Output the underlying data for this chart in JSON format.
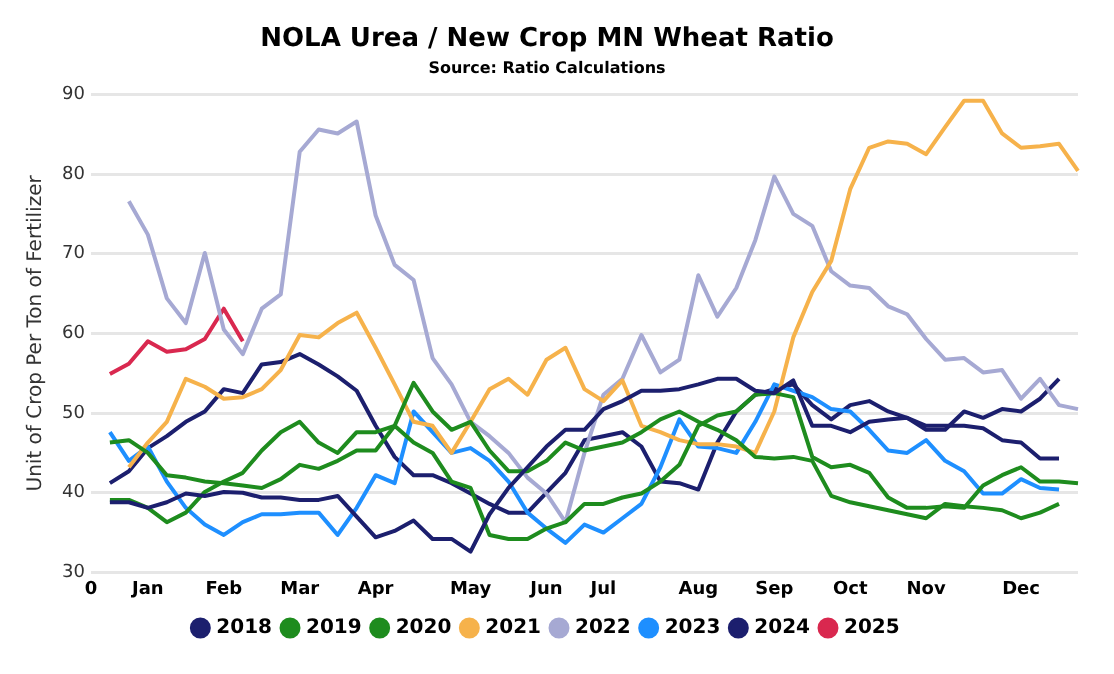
{
  "chart_data": {
    "type": "line",
    "title": "NOLA Urea / New Crop MN Wheat Ratio",
    "subtitle": "Source: Ratio Calculations",
    "ylabel": "Unit of Crop Per Ton of Fertilizer",
    "categories": [
      "0",
      null,
      null,
      "Jan",
      null,
      null,
      null,
      "Feb",
      null,
      null,
      null,
      "Mar",
      null,
      null,
      null,
      "Apr",
      null,
      null,
      null,
      null,
      "May",
      null,
      null,
      null,
      "Jun",
      null,
      null,
      "Jul",
      null,
      null,
      null,
      null,
      "Aug",
      null,
      null,
      null,
      "Sep",
      null,
      null,
      null,
      "Oct",
      null,
      null,
      null,
      "Nov",
      null,
      null,
      null,
      null,
      "Dec",
      null,
      null,
      null
    ],
    "ylim": [
      30,
      90
    ],
    "yticks": [
      30,
      40,
      50,
      60,
      70,
      80,
      90
    ],
    "grid": "y",
    "legend": "bottom",
    "marker": "none",
    "line_style": "solid",
    "series": [
      {
        "name": "2018",
        "color": "#1c1f6e",
        "values": [
          null,
          38.8,
          38.8,
          38.1,
          38.8,
          39.9,
          39.6,
          40.1,
          40.0,
          39.4,
          39.4,
          39.1,
          39.1,
          39.6,
          37.0,
          34.4,
          35.2,
          36.5,
          34.2,
          34.2,
          32.6,
          37.3,
          40.6,
          43.2,
          45.8,
          47.9,
          47.9,
          50.5,
          51.5,
          52.8,
          52.8,
          53.0,
          53.6,
          54.3,
          54.3,
          52.8,
          52.5,
          54.1,
          48.4,
          48.4,
          47.6,
          48.9,
          49.2,
          49.4,
          48.4,
          48.4,
          48.4,
          48.1,
          46.6,
          46.3,
          44.3,
          44.3,
          null
        ]
      },
      {
        "name": "2019",
        "color": "#1e8c1e",
        "values": [
          null,
          39.1,
          39.1,
          38.1,
          36.3,
          37.5,
          40.1,
          41.4,
          42.5,
          45.3,
          47.6,
          48.9,
          46.3,
          45.0,
          47.6,
          47.6,
          48.4,
          46.3,
          45.0,
          41.4,
          40.6,
          34.7,
          34.2,
          34.2,
          35.5,
          36.3,
          38.6,
          38.6,
          39.4,
          39.9,
          41.4,
          43.5,
          48.4,
          49.7,
          50.2,
          52.3,
          52.5,
          52.0,
          44.5,
          43.2,
          43.5,
          42.5,
          39.4,
          38.1,
          38.1,
          38.3,
          38.1,
          40.9,
          42.2,
          43.2,
          41.4,
          41.4,
          41.2
        ]
      },
      {
        "name": "2020",
        "color": "#1e8c1e",
        "values": [
          null,
          46.3,
          46.6,
          45.0,
          42.2,
          41.9,
          41.4,
          41.2,
          40.9,
          40.6,
          41.7,
          43.5,
          43.0,
          44.0,
          45.3,
          45.3,
          48.4,
          53.8,
          50.2,
          47.9,
          48.9,
          45.3,
          42.7,
          42.7,
          44.0,
          46.3,
          45.3,
          45.8,
          46.3,
          47.6,
          49.2,
          50.2,
          48.9,
          47.9,
          46.6,
          44.5,
          44.3,
          44.5,
          44.0,
          39.6,
          38.8,
          38.3,
          37.8,
          37.3,
          36.8,
          38.6,
          38.3,
          38.1,
          37.8,
          36.8,
          37.5,
          38.6,
          null
        ]
      },
      {
        "name": "2021",
        "color": "#f6b24b",
        "values": [
          null,
          null,
          43.2,
          46.3,
          48.9,
          54.3,
          53.3,
          51.8,
          52.0,
          53.0,
          55.4,
          59.8,
          59.5,
          61.3,
          62.6,
          58.2,
          53.6,
          48.9,
          48.4,
          45.0,
          48.9,
          53.0,
          54.3,
          52.3,
          56.7,
          58.2,
          53.0,
          51.5,
          54.1,
          48.4,
          47.6,
          46.6,
          46.1,
          46.1,
          45.8,
          45.0,
          50.2,
          59.5,
          65.2,
          69.1,
          78.1,
          83.3,
          84.1,
          83.8,
          82.5,
          85.9,
          89.2,
          89.2,
          85.1,
          83.3,
          83.5,
          83.8,
          80.4
        ]
      },
      {
        "name": "2022",
        "color": "#a6a9d3",
        "values": [
          null,
          null,
          76.6,
          72.4,
          64.4,
          61.3,
          70.1,
          60.5,
          57.4,
          63.1,
          64.9,
          82.8,
          85.6,
          85.1,
          86.6,
          74.8,
          68.6,
          66.7,
          56.9,
          53.6,
          48.9,
          47.1,
          45.0,
          41.9,
          39.9,
          36.3,
          45.0,
          52.3,
          54.3,
          59.8,
          55.1,
          56.7,
          67.3,
          62.1,
          65.7,
          71.7,
          79.7,
          75.0,
          73.5,
          67.8,
          66.0,
          65.7,
          63.4,
          62.4,
          59.3,
          56.7,
          56.9,
          55.1,
          55.4,
          51.8,
          54.3,
          51.0,
          50.5
        ]
      },
      {
        "name": "2023",
        "color": "#1e8fff",
        "values": [
          null,
          47.6,
          44.0,
          45.8,
          41.4,
          38.1,
          36.0,
          34.7,
          36.3,
          37.3,
          37.3,
          37.5,
          37.5,
          34.7,
          38.1,
          42.2,
          41.2,
          50.2,
          47.6,
          45.0,
          45.6,
          44.0,
          41.4,
          37.5,
          35.5,
          33.7,
          36.0,
          35.0,
          36.8,
          38.6,
          43.2,
          49.2,
          45.8,
          45.6,
          45.0,
          48.9,
          53.6,
          52.8,
          52.0,
          50.5,
          50.2,
          47.9,
          45.3,
          45.0,
          46.6,
          44.0,
          42.7,
          39.9,
          39.9,
          41.7,
          40.6,
          40.4,
          null
        ]
      },
      {
        "name": "2024",
        "color": "#1c1f6e",
        "values": [
          null,
          41.2,
          42.7,
          45.6,
          47.1,
          48.9,
          50.2,
          53.0,
          52.5,
          56.1,
          56.4,
          57.4,
          56.1,
          54.6,
          52.8,
          48.4,
          44.5,
          42.2,
          42.2,
          41.2,
          39.9,
          38.6,
          37.5,
          37.5,
          40.0,
          42.5,
          46.6,
          47.1,
          47.6,
          45.8,
          41.4,
          41.2,
          40.4,
          46.3,
          50.2,
          52.3,
          53.0,
          53.6,
          51.0,
          49.2,
          51.0,
          51.5,
          50.2,
          49.4,
          47.9,
          47.9,
          50.2,
          49.4,
          50.5,
          50.2,
          51.8,
          54.3,
          null
        ]
      },
      {
        "name": "2025",
        "color": "#d9284f",
        "values": [
          null,
          54.9,
          56.2,
          59.0,
          57.7,
          58.0,
          59.3,
          63.1,
          59.0,
          null,
          null,
          null,
          null,
          null,
          null,
          null,
          null,
          null,
          null,
          null,
          null,
          null,
          null,
          null,
          null,
          null,
          null,
          null,
          null,
          null,
          null,
          null,
          null,
          null,
          null,
          null,
          null,
          null,
          null,
          null,
          null,
          null,
          null,
          null,
          null,
          null,
          null,
          null,
          null,
          null,
          null,
          null,
          null
        ]
      }
    ]
  }
}
